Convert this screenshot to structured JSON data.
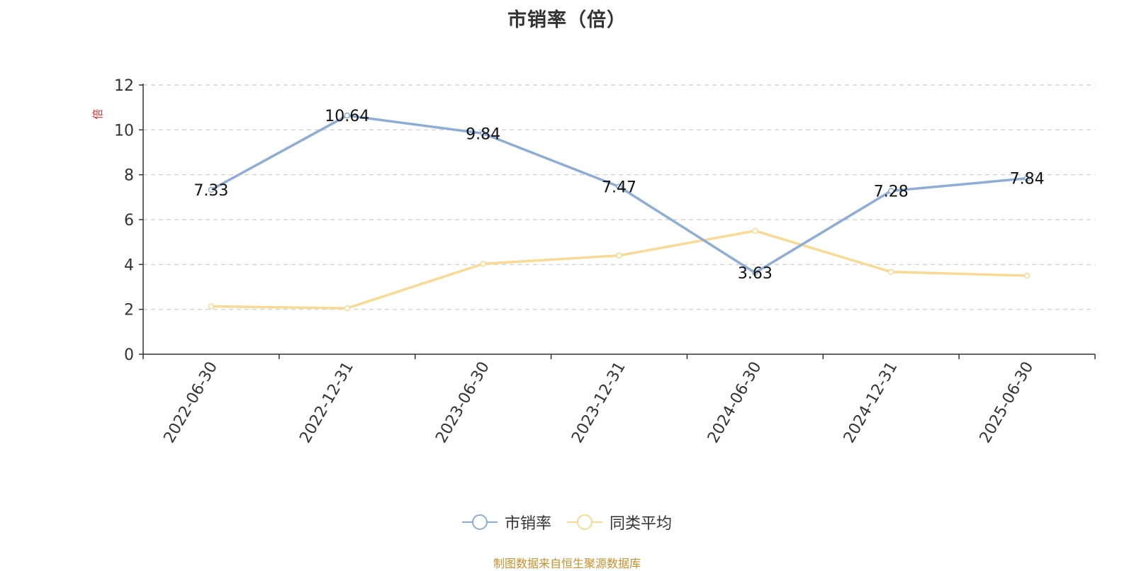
{
  "title": "市销率（倍）",
  "source_note": "制图数据来自恒生聚源数据库",
  "colors": {
    "series_main": "#8eadd6",
    "series_avg": "#f9d993",
    "axis": "#333333",
    "grid": "#cccccc",
    "unit_label": "#e5262a",
    "source": "#c8902c"
  },
  "chart_data": {
    "type": "line",
    "title": "市销率（倍）",
    "xlabel": "",
    "ylabel": "倍",
    "ylim": [
      0,
      12
    ],
    "yticks": [
      0,
      2,
      4,
      6,
      8,
      10,
      12
    ],
    "grid": true,
    "legend_position": "bottom",
    "categories": [
      "2022-06-30",
      "2022-12-31",
      "2023-06-30",
      "2023-12-31",
      "2024-06-30",
      "2024-12-31",
      "2025-06-30"
    ],
    "series": [
      {
        "name": "市销率",
        "values": [
          7.33,
          10.64,
          9.84,
          7.47,
          3.63,
          7.28,
          7.84
        ],
        "labels": [
          "7.33",
          "10.64",
          "9.84",
          "7.47",
          "3.63",
          "7.28",
          "7.84"
        ],
        "show_labels": true
      },
      {
        "name": "同类平均",
        "values": [
          2.13,
          2.05,
          4.03,
          4.4,
          5.5,
          3.67,
          3.5
        ],
        "show_labels": false
      }
    ]
  }
}
